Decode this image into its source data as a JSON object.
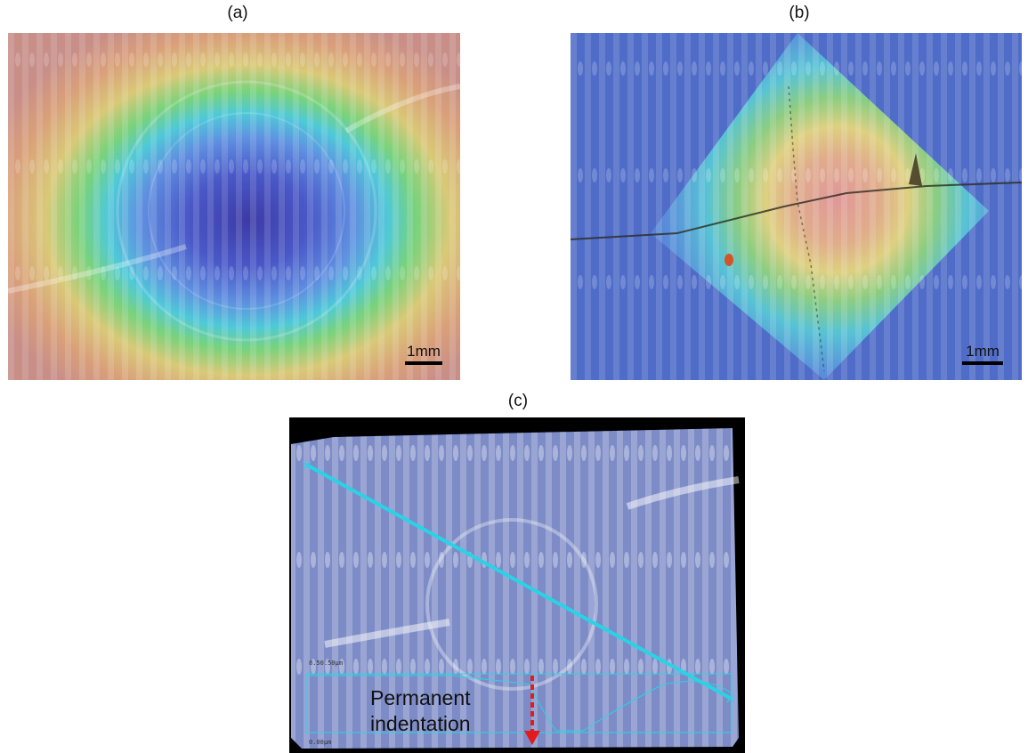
{
  "panels": {
    "a": {
      "label": "(a)",
      "scale_label": "1mm"
    },
    "b": {
      "label": "(b)",
      "scale_label": "1mm"
    },
    "c": {
      "label": "(c)",
      "annotation_line1": "Permanent",
      "annotation_line2": "indentation",
      "top_marker": "8.50.50µm",
      "bottom_marker": "0.00µm",
      "colors": {
        "profile_line": "#29d3e6",
        "arrow": "#e21b1b"
      }
    }
  }
}
